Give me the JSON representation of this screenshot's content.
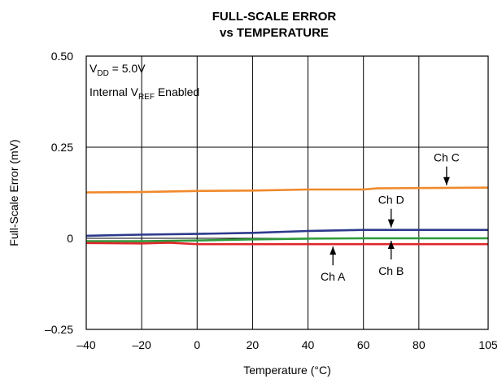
{
  "chart_data": {
    "type": "line",
    "title_line1": "FULL-SCALE ERROR",
    "title_line2": "vs TEMPERATURE",
    "xlabel": "Temperature (°C)",
    "ylabel": "Full-Scale Error (mV)",
    "xlim": [
      -40,
      105
    ],
    "ylim": [
      -0.25,
      0.5
    ],
    "xticks": [
      -40,
      -20,
      0,
      20,
      40,
      60,
      80,
      105
    ],
    "xtick_labels": [
      "–40",
      "–20",
      "0",
      "20",
      "40",
      "60",
      "80",
      "105"
    ],
    "yticks": [
      -0.25,
      0,
      0.25,
      0.5
    ],
    "ytick_labels": [
      "–0.25",
      "0",
      "0.25",
      "0.50"
    ],
    "grid": true,
    "annotation": {
      "vdd_prefix": "V",
      "vdd_sub": "DD",
      "vdd_suffix": " = 5.0V",
      "vref_prefix": "Internal V",
      "vref_sub": "REF",
      "vref_suffix": " Enabled"
    },
    "series": [
      {
        "name": "Ch C",
        "color": "#f0892b",
        "x": [
          -40,
          -20,
          0,
          20,
          40,
          60,
          65,
          80,
          105
        ],
        "y": [
          0.126,
          0.127,
          0.13,
          0.131,
          0.134,
          0.134,
          0.137,
          0.138,
          0.139
        ]
      },
      {
        "name": "Ch D",
        "color": "#2d3a8c",
        "x": [
          -40,
          -20,
          0,
          20,
          40,
          60,
          80,
          105
        ],
        "y": [
          0.007,
          0.01,
          0.012,
          0.015,
          0.02,
          0.023,
          0.023,
          0.023
        ]
      },
      {
        "name": "Ch B",
        "color": "#2e9a3b",
        "x": [
          -40,
          -20,
          0,
          20,
          40,
          60,
          80,
          105
        ],
        "y": [
          -0.008,
          -0.008,
          -0.006,
          -0.003,
          -0.001,
          0.0,
          0.0,
          0.0
        ]
      },
      {
        "name": "Ch A",
        "color": "#e0282c",
        "x": [
          -40,
          -20,
          -10,
          0,
          20,
          40,
          60,
          80,
          105
        ],
        "y": [
          -0.013,
          -0.014,
          -0.012,
          -0.016,
          -0.016,
          -0.016,
          -0.016,
          -0.016,
          -0.016
        ]
      }
    ],
    "labels": [
      {
        "name": "Ch C",
        "x": 90,
        "y": 0.139,
        "side": "above"
      },
      {
        "name": "Ch D",
        "x": 70,
        "y": 0.023,
        "side": "above"
      },
      {
        "name": "Ch B",
        "x": 70,
        "y": 0.0,
        "side": "below"
      },
      {
        "name": "Ch A",
        "x": 49,
        "y": -0.016,
        "side": "below"
      }
    ]
  }
}
